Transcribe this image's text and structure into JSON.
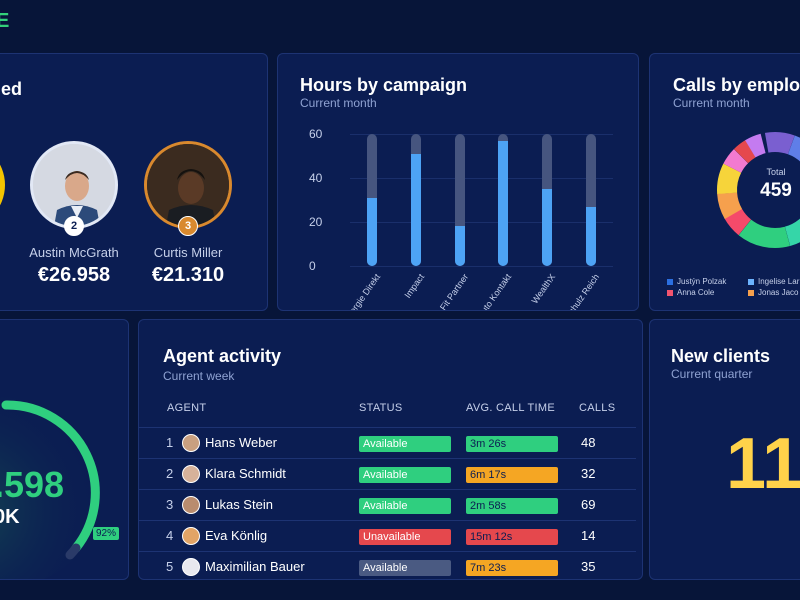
{
  "leaderboard": {
    "title_fragment": "ed",
    "people": [
      {
        "rank": "2",
        "name": "Austin McGrath",
        "amount": "€26.958"
      },
      {
        "rank": "3",
        "name": "Curtis Miller",
        "amount": "€21.310"
      }
    ]
  },
  "hours_panel": {
    "title": "Hours by campaign",
    "subtitle": "Current month"
  },
  "chart_data": {
    "type": "bar",
    "categories": [
      "Energie Direkt",
      "Impact",
      "Fit Partner",
      "Auto Kontakt",
      "WealthX",
      "Schulz Reich"
    ],
    "values": [
      31,
      51,
      18,
      57,
      35,
      27
    ],
    "max_values": [
      60,
      60,
      60,
      60,
      60,
      60
    ],
    "yticks": [
      "0",
      "20",
      "40",
      "60"
    ],
    "ylim": [
      0,
      60
    ],
    "xlabel": "",
    "ylabel": "",
    "series_color": "#4da3f5",
    "track_color": "#46557f"
  },
  "calls_panel": {
    "title": "Calls by employ",
    "subtitle": "Current month",
    "total_label": "Total",
    "total_value": "459",
    "legend": [
      {
        "name": "Justýn Polzak",
        "color": "#2b6fe0"
      },
      {
        "name": "Ingelise Lar",
        "color": "#6cb4ff"
      },
      {
        "name": "Anna Cole",
        "color": "#f2546f"
      },
      {
        "name": "Jonas Jaco",
        "color": "#f6a04d"
      }
    ]
  },
  "gauge_panel": {
    "value_fragment": ".598",
    "target_fragment": "0K",
    "percent": "92%",
    "progress": 0.92
  },
  "agent_activity": {
    "title": "Agent activity",
    "subtitle": "Current week",
    "headers": {
      "agent": "AGENT",
      "status": "STATUS",
      "avg_call_time": "AVG. CALL TIME",
      "calls": "CALLS"
    },
    "rows": [
      {
        "num": "1",
        "name": "Hans Weber",
        "status": "Available",
        "status_color": "#2fcf7f",
        "time": "3m 26s",
        "time_color": "#2fcf7f",
        "calls": "48"
      },
      {
        "num": "2",
        "name": "Klara Schmidt",
        "status": "Available",
        "status_color": "#2fcf7f",
        "time": "6m 17s",
        "time_color": "#f5a623",
        "calls": "32"
      },
      {
        "num": "3",
        "name": "Lukas Stein",
        "status": "Available",
        "status_color": "#2fcf7f",
        "time": "2m 58s",
        "time_color": "#2fcf7f",
        "calls": "69"
      },
      {
        "num": "4",
        "name": "Eva Könlig",
        "status": "Unavailable",
        "status_color": "#e5484d",
        "time": "15m 12s",
        "time_color": "#e5484d",
        "calls": "14"
      },
      {
        "num": "5",
        "name": "Maximilian Bauer",
        "status": "Available",
        "status_color": "#4a5a82",
        "time": "7m 23s",
        "time_color": "#f5a623",
        "calls": "35"
      }
    ]
  },
  "new_clients": {
    "title": "New clients",
    "subtitle": "Current quarter",
    "value_fragment": "11"
  }
}
